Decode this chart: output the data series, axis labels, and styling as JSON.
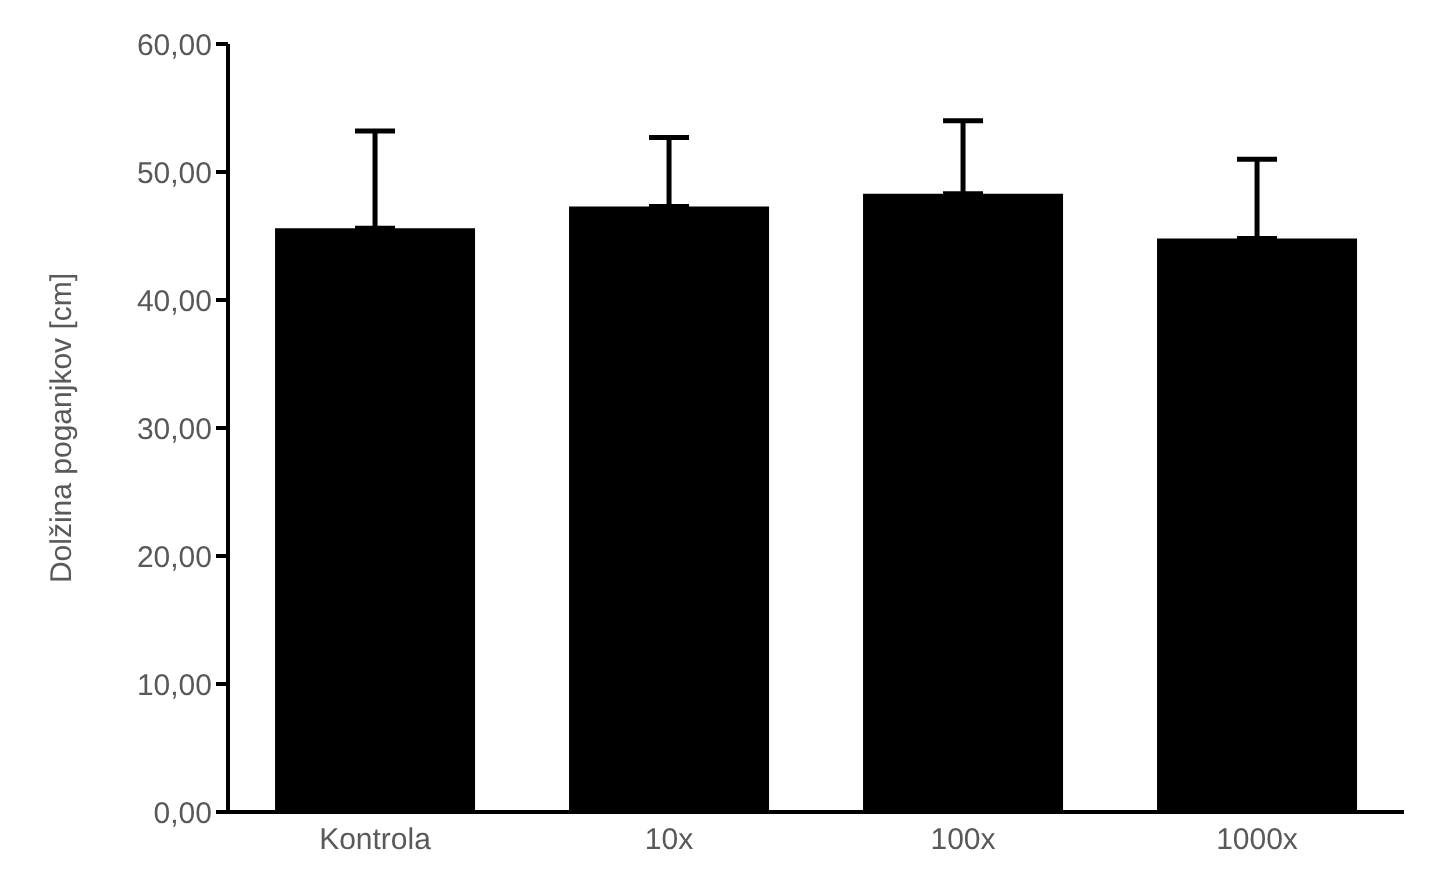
{
  "chart_data": {
    "type": "bar",
    "ylabel": "Dolžina poganjkov [cm]",
    "categories": [
      "Kontrola",
      "10x",
      "100x",
      "1000x"
    ],
    "values": [
      45.6,
      47.3,
      48.3,
      44.8
    ],
    "errors": [
      [
        45.6,
        53.2
      ],
      [
        47.3,
        52.7
      ],
      [
        48.3,
        54.0
      ],
      [
        44.8,
        51.0
      ]
    ],
    "color": "#000000",
    "ylim": [
      0,
      60
    ],
    "yticks": [
      {
        "value": 0,
        "label": "0,00"
      },
      {
        "value": 10,
        "label": "10,00"
      },
      {
        "value": 20,
        "label": "20,00"
      },
      {
        "value": 30,
        "label": "30,00"
      },
      {
        "value": 40,
        "label": "40,00"
      },
      {
        "value": 50,
        "label": "50,00"
      },
      {
        "value": 60,
        "label": "60,00"
      }
    ],
    "grid": false
  }
}
